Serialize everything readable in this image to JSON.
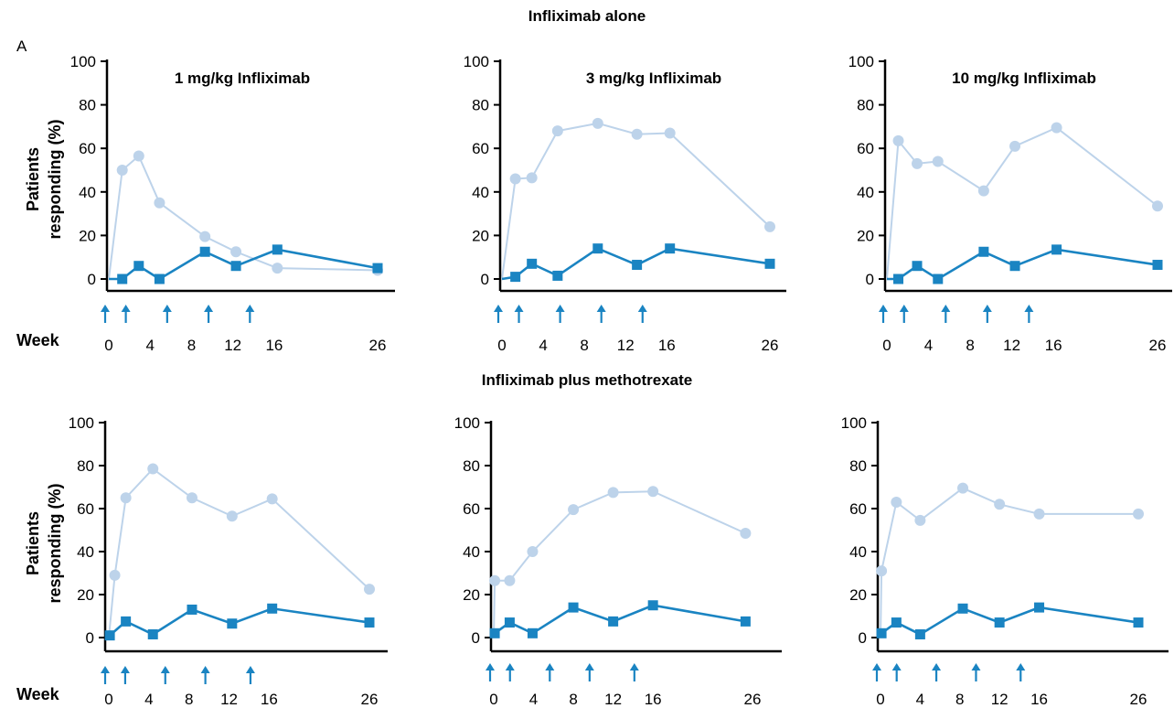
{
  "panel_label": "A",
  "week_label": "Week",
  "y_axis_label_lines": [
    "Patients",
    "responding (%)"
  ],
  "colors": {
    "series_circle": "#bdd3ea",
    "series_square": "#1a84c2",
    "arrow": "#1a84c2",
    "axis": "#000000"
  },
  "rows": [
    {
      "title": "Infliximab alone"
    },
    {
      "title": "Infliximab plus methotrexate"
    }
  ],
  "chart_data": [
    {
      "type": "line",
      "row": 0,
      "title": "1 mg/kg Infliximab",
      "ylim": [
        0,
        100
      ],
      "yticks": [
        0,
        20,
        40,
        60,
        80,
        100
      ],
      "xticks": [
        0,
        4,
        8,
        12,
        16,
        26
      ],
      "xlim": [
        -1.5,
        27.5
      ],
      "ylabel": "Patients responding (%)",
      "xlabel": "Week",
      "arrows_at_weeks": [
        0,
        2,
        6,
        10,
        14
      ],
      "series": [
        {
          "marker": "circle",
          "x": [
            0,
            1.3,
            2.9,
            4.9,
            9.3,
            12.3,
            16.3,
            26
          ],
          "y": [
            0,
            50,
            56.5,
            35,
            19.5,
            12.5,
            5,
            4
          ]
        },
        {
          "marker": "square",
          "x": [
            0,
            1.3,
            2.9,
            4.9,
            9.3,
            12.3,
            16.3,
            26
          ],
          "y": [
            0,
            0,
            6,
            0,
            12.5,
            6,
            13.5,
            5
          ]
        }
      ]
    },
    {
      "type": "line",
      "row": 0,
      "title": "3 mg/kg Infliximab",
      "ylim": [
        0,
        100
      ],
      "yticks": [
        0,
        20,
        40,
        60,
        80,
        100
      ],
      "xticks": [
        0,
        4,
        8,
        12,
        16,
        26
      ],
      "xlim": [
        -1.5,
        27.5
      ],
      "ylabel": "Patients responding (%)",
      "xlabel": "Week",
      "arrows_at_weeks": [
        0,
        2,
        6,
        10,
        14
      ],
      "series": [
        {
          "marker": "circle",
          "x": [
            0,
            1.3,
            2.9,
            5.4,
            9.3,
            13.1,
            16.3,
            26
          ],
          "y": [
            0,
            46,
            46.5,
            68,
            71.5,
            66.5,
            67,
            24
          ]
        },
        {
          "marker": "square",
          "x": [
            0,
            1.3,
            2.9,
            5.4,
            9.3,
            13.1,
            16.3,
            26
          ],
          "y": [
            0,
            1,
            7,
            1.5,
            14,
            6.5,
            14,
            7
          ]
        }
      ]
    },
    {
      "type": "line",
      "row": 0,
      "title": "10 mg/kg Infliximab",
      "ylim": [
        0,
        100
      ],
      "yticks": [
        0,
        20,
        40,
        60,
        80,
        100
      ],
      "xticks": [
        0,
        4,
        8,
        12,
        16,
        26
      ],
      "xlim": [
        -1.5,
        27.5
      ],
      "ylabel": "Patients responding (%)",
      "xlabel": "Week",
      "arrows_at_weeks": [
        0,
        2,
        6,
        10,
        14
      ],
      "series": [
        {
          "marker": "circle",
          "x": [
            0,
            1.1,
            2.9,
            4.9,
            9.3,
            12.3,
            16.3,
            26
          ],
          "y": [
            0,
            63.5,
            53,
            54,
            40.5,
            61,
            69.5,
            33.5
          ]
        },
        {
          "marker": "square",
          "x": [
            0,
            1.1,
            2.9,
            4.9,
            9.3,
            12.3,
            16.3,
            26
          ],
          "y": [
            0,
            0,
            6,
            0,
            12.5,
            6,
            13.5,
            6.5
          ]
        }
      ]
    },
    {
      "type": "line",
      "row": 1,
      "title": "",
      "ylim": [
        0,
        100
      ],
      "yticks": [
        0,
        20,
        40,
        60,
        80,
        100
      ],
      "xticks": [
        0,
        4,
        8,
        12,
        16,
        26
      ],
      "xlim": [
        -1.5,
        27.5
      ],
      "ylabel": "Patients responding (%)",
      "xlabel": "Week",
      "arrows_at_weeks": [
        0,
        2,
        6,
        10,
        14.5
      ],
      "series": [
        {
          "marker": "circle",
          "x": [
            0,
            0.6,
            1.7,
            4.4,
            8.3,
            12.3,
            16.3,
            26
          ],
          "y": [
            0,
            29,
            65,
            78.5,
            65,
            56.5,
            64.5,
            22.5
          ]
        },
        {
          "marker": "square",
          "x": [
            0,
            0.1,
            1.7,
            4.4,
            8.3,
            12.3,
            16.3,
            26
          ],
          "y": [
            0,
            1,
            7.5,
            1.5,
            13,
            6.5,
            13.5,
            7
          ]
        }
      ]
    },
    {
      "type": "line",
      "row": 1,
      "title": "",
      "ylim": [
        0,
        100
      ],
      "yticks": [
        0,
        20,
        40,
        60,
        80,
        100
      ],
      "xticks": [
        0,
        4,
        8,
        12,
        16,
        26
      ],
      "xlim": [
        -1.5,
        27.5
      ],
      "ylabel": "Patients responding (%)",
      "xlabel": "Week",
      "arrows_at_weeks": [
        0,
        2,
        6,
        10,
        14.5
      ],
      "series": [
        {
          "marker": "circle",
          "x": [
            0,
            0.1,
            1.6,
            3.9,
            8,
            12,
            16,
            25.3
          ],
          "y": [
            0,
            26.5,
            26.5,
            40,
            59.5,
            67.5,
            68,
            48.5
          ]
        },
        {
          "marker": "square",
          "x": [
            0,
            0.1,
            1.6,
            3.9,
            8,
            12,
            16,
            25.3
          ],
          "y": [
            0,
            2,
            7,
            2,
            14,
            7.5,
            15,
            7.5
          ]
        }
      ]
    },
    {
      "type": "line",
      "row": 1,
      "title": "",
      "ylim": [
        0,
        100
      ],
      "yticks": [
        0,
        20,
        40,
        60,
        80,
        100
      ],
      "xticks": [
        0,
        4,
        8,
        12,
        16,
        26
      ],
      "xlim": [
        -1.5,
        27.5
      ],
      "ylabel": "Patients responding (%)",
      "xlabel": "Week",
      "arrows_at_weeks": [
        0,
        2,
        6,
        10,
        14.5
      ],
      "series": [
        {
          "marker": "circle",
          "x": [
            0,
            0.1,
            1.6,
            4,
            8.3,
            12,
            16,
            26
          ],
          "y": [
            0,
            31,
            63,
            54.5,
            69.5,
            62,
            57.5,
            57.5
          ]
        },
        {
          "marker": "square",
          "x": [
            0,
            0.1,
            1.6,
            4,
            8.3,
            12,
            16,
            26
          ],
          "y": [
            0,
            2,
            7,
            1.5,
            13.5,
            7,
            14,
            7
          ]
        }
      ]
    }
  ]
}
